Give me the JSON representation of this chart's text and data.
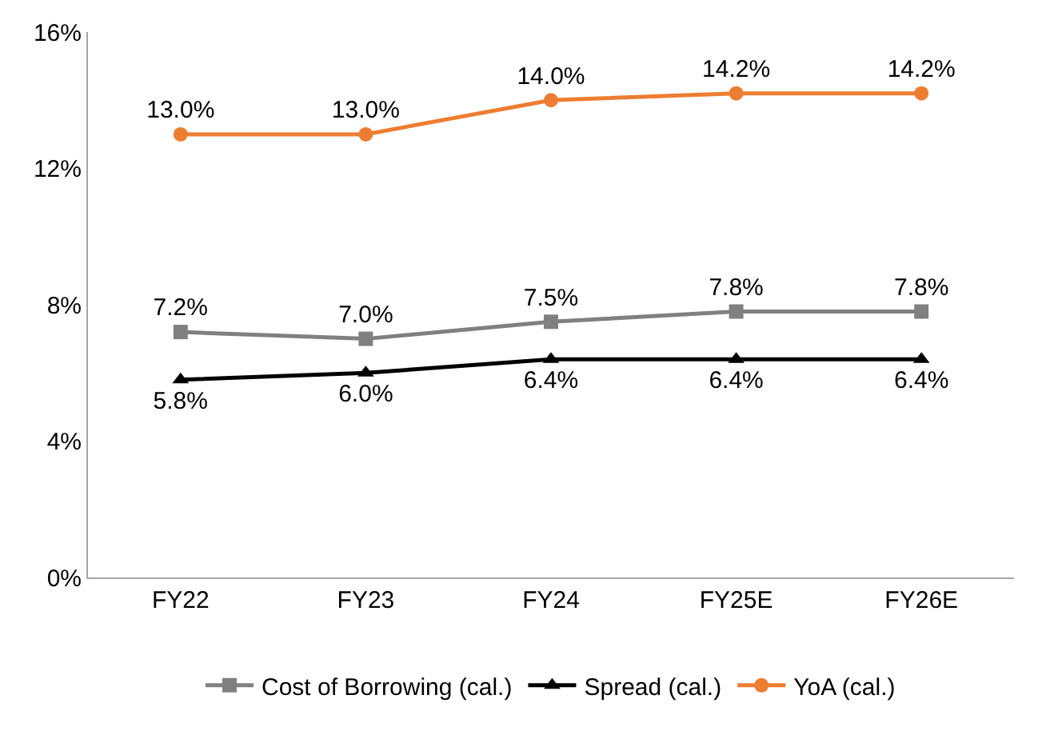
{
  "chart_data": {
    "type": "line",
    "categories": [
      "FY22",
      "FY23",
      "FY24",
      "FY25E",
      "FY26E"
    ],
    "series": [
      {
        "name": "Cost of Borrowing (cal.)",
        "color": "#808080",
        "marker": "square",
        "values": [
          7.2,
          7.0,
          7.5,
          7.8,
          7.8
        ],
        "value_labels": [
          "7.2%",
          "7.0%",
          "7.5%",
          "7.8%",
          "7.8%"
        ]
      },
      {
        "name": "Spread (cal.)",
        "color": "#000000",
        "marker": "triangle",
        "values": [
          5.8,
          6.0,
          6.4,
          6.4,
          6.4
        ],
        "value_labels": [
          "5.8%",
          "6.0%",
          "6.4%",
          "6.4%",
          "6.4%"
        ]
      },
      {
        "name": "YoA (cal.)",
        "color": "#ed7d31",
        "marker": "circle",
        "values": [
          13.0,
          13.0,
          14.0,
          14.2,
          14.2
        ],
        "value_labels": [
          "13.0%",
          "13.0%",
          "14.0%",
          "14.2%",
          "14.2%"
        ]
      }
    ],
    "ylim": [
      0,
      16
    ],
    "yticks": [
      {
        "value": 0,
        "label": "0%"
      },
      {
        "value": 4,
        "label": "4%"
      },
      {
        "value": 8,
        "label": "8%"
      },
      {
        "value": 12,
        "label": "12%"
      },
      {
        "value": 16,
        "label": "16%"
      }
    ],
    "legend": "bottom",
    "line_style": "solid"
  }
}
